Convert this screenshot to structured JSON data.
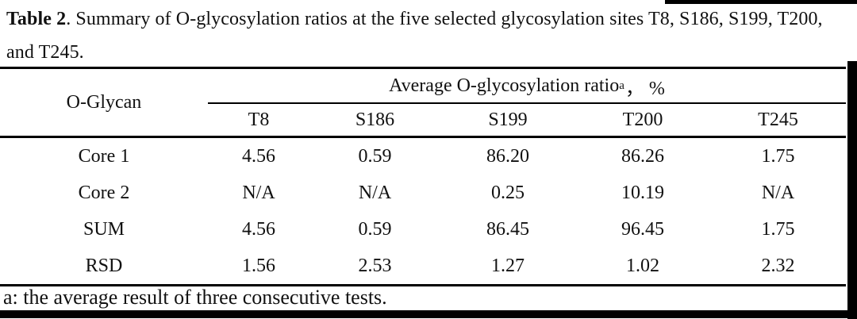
{
  "caption": {
    "table_label": "Table 2",
    "line1_rest": ". Summary of O-glycosylation ratios at the five selected glycosylation sites T8, S186, S199, T200,",
    "line2": "and T245."
  },
  "table": {
    "corner_header": "O-Glycan",
    "span_header": {
      "prefix": "Average O-glycosylation ratio",
      "sup": "a",
      "suffix": "， %"
    },
    "columns": [
      "T8",
      "S186",
      "S199",
      "T200",
      "T245"
    ],
    "rows": [
      {
        "label": "Core 1",
        "values": [
          "4.56",
          "0.59",
          "86.20",
          "86.26",
          "1.75"
        ]
      },
      {
        "label": "Core 2",
        "values": [
          "N/A",
          "N/A",
          "0.25",
          "10.19",
          "N/A"
        ]
      },
      {
        "label": "SUM",
        "values": [
          "4.56",
          "0.59",
          "86.45",
          "96.45",
          "1.75"
        ]
      },
      {
        "label": "RSD",
        "values": [
          "1.56",
          "2.53",
          "1.27",
          "1.02",
          "2.32"
        ]
      }
    ],
    "footnote": "a: the average result of three consecutive tests."
  },
  "colors": {
    "background": "#ffffff",
    "text": "#111111",
    "rule": "#000000"
  }
}
